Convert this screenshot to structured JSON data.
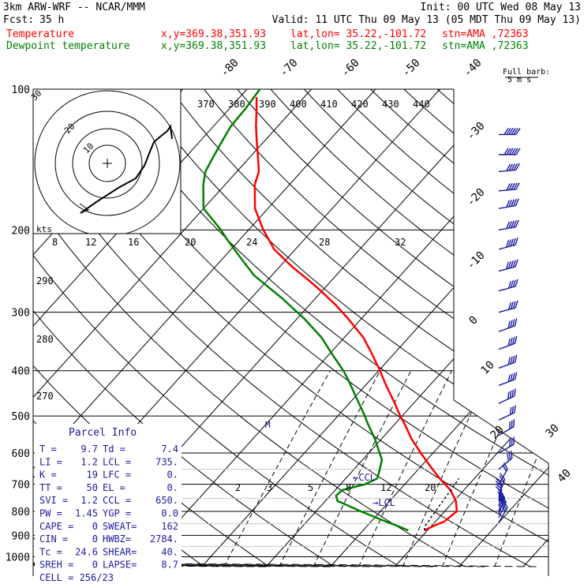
{
  "header": {
    "model": "3km ARW-WRF -- NCAR/MMM",
    "init": "Init: 00 UTC Wed 08 May 13",
    "fcst_label": "Fcst:",
    "fcst_value": "35 h",
    "valid": "Valid: 11 UTC Thu 09 May 13 (05 MDT Thu 09 May 13)"
  },
  "legend": [
    {
      "name": "Temperature",
      "color": "#ff0000",
      "xy": "x,y=369.38,351.93",
      "latlon": "lat,lon= 35.22,-101.72",
      "stn": "stn=AMA ,72363"
    },
    {
      "name": "Dewpoint temperature",
      "color": "#008000",
      "xy": "x,y=369.38,351.93",
      "latlon": "lat,lon= 35.22,-101.72",
      "stn": "stn=AMA ,72363"
    }
  ],
  "parcel_info": {
    "title": "Parcel Info",
    "rows": [
      [
        "T  =",
        "9.7",
        "Td =",
        "7.4"
      ],
      [
        "LI =",
        "1.2",
        "LCL =",
        "735."
      ],
      [
        "K  =",
        "19",
        "LFC =",
        "0."
      ],
      [
        "TT =",
        "50",
        "EL =",
        "0."
      ],
      [
        "SVI =",
        "1.2",
        "CCL =",
        "650."
      ],
      [
        "PW =",
        "1.45",
        "YGP =",
        "0.0"
      ],
      [
        "CAPE =",
        "0",
        "SWEAT=",
        "162"
      ],
      [
        "CIN =",
        "0",
        "HWBZ=",
        "2784."
      ],
      [
        "Tc =",
        "24.6",
        "SHEAR=",
        "40."
      ],
      [
        "SREH =",
        "0",
        "LAPSE=",
        "8.7"
      ],
      [
        "CELL = 256/23",
        "",
        "",
        ""
      ]
    ]
  },
  "hodograph": {
    "units": "kts",
    "ring_labels": [
      "10",
      "20",
      "30"
    ],
    "speed_ticks": [
      "8",
      "12",
      "16",
      "20",
      "24",
      "28",
      "32"
    ]
  },
  "wind_key": {
    "line1": "Full barb:",
    "line2": "5 m s"
  },
  "annotations": {
    "ccl": "←CCL",
    "lcl": "→LCL",
    "m": "M"
  },
  "colors": {
    "temperature": "#ff0000",
    "dewpoint": "#008000",
    "parcel_box": "#1a1aa0",
    "grid": "#000000"
  },
  "chart_data": {
    "type": "line",
    "title": "",
    "y_axis_type": "log pressure",
    "ylabel": "",
    "xlabel": "",
    "ylim": [
      1000,
      100
    ],
    "pressure_ticks": [
      "100",
      "200",
      "300",
      "400",
      "500",
      "600",
      "700",
      "800",
      "900",
      "1000"
    ],
    "isotherm_labels": [
      "-80",
      "-70",
      "-60",
      "-50",
      "-40",
      "-30",
      "-20",
      "-10",
      "0",
      "10",
      "20",
      "30",
      "40"
    ],
    "theta_labels": [
      "370",
      "380",
      "390",
      "400",
      "410",
      "420",
      "430",
      "440"
    ],
    "dry_adiabat_labels": [
      "290",
      "280",
      "270"
    ],
    "mixing_ratio_labels": [
      "2",
      "3",
      "5",
      "8",
      "12",
      "20"
    ],
    "series": [
      {
        "name": "Temperature",
        "color": "#ff0000",
        "p": [
          878,
          860,
          840,
          800,
          760,
          720,
          680,
          640,
          600,
          560,
          520,
          500,
          470,
          430,
          400,
          370,
          340,
          310,
          290,
          270,
          255,
          240,
          220,
          200,
          180,
          160,
          150,
          140,
          130,
          120,
          110,
          104
        ],
        "t": [
          9.5,
          10.3,
          11.4,
          11.9,
          10.3,
          7.9,
          4.6,
          1.4,
          -1.9,
          -5.3,
          -8.5,
          -10.3,
          -12.9,
          -16.8,
          -19.8,
          -23.2,
          -27.0,
          -32.0,
          -35.8,
          -40.2,
          -43.9,
          -48.0,
          -53.3,
          -57.7,
          -62.0,
          -65.4,
          -66.6,
          -68.7,
          -71.0,
          -73.4,
          -75.8,
          -77.4
        ]
      },
      {
        "name": "Dewpoint temperature",
        "color": "#008000",
        "p": [
          878,
          860,
          840,
          800,
          780,
          760,
          740,
          720,
          700,
          680,
          650,
          620,
          600,
          560,
          520,
          500,
          460,
          420,
          400,
          370,
          340,
          310,
          280,
          250,
          230,
          210,
          200,
          180,
          160,
          150,
          140,
          130,
          120,
          110,
          100
        ],
        "t": [
          7.0,
          4.8,
          2.2,
          -3.0,
          -5.5,
          -8.1,
          -9.1,
          -8.9,
          -6.2,
          -5.1,
          -6.0,
          -7.0,
          -8.3,
          -11.0,
          -14.2,
          -15.8,
          -19.4,
          -23.3,
          -25.5,
          -29.4,
          -33.5,
          -38.8,
          -45.2,
          -52.8,
          -57.2,
          -61.9,
          -64.3,
          -70.0,
          -73.4,
          -74.9,
          -75.7,
          -76.5,
          -77.3,
          -77.5,
          -78.0
        ]
      }
    ],
    "parcel_curve": {
      "p": [
        878,
        860,
        840,
        820,
        800,
        780,
        760,
        740,
        720,
        700,
        680
      ],
      "t": [
        9.5,
        9.0,
        8.9,
        8.7,
        8.6,
        8.4,
        8.3,
        8.1,
        8.0,
        7.8,
        7.6
      ]
    },
    "wind_barbs": {
      "p": [
        125,
        138,
        150,
        165,
        180,
        200,
        220,
        245,
        270,
        300,
        330,
        360,
        395,
        430,
        470,
        510,
        550,
        600,
        650,
        700,
        740,
        760,
        780,
        800,
        810,
        825,
        845
      ],
      "speed_kt": [
        55,
        55,
        50,
        50,
        50,
        50,
        45,
        45,
        40,
        40,
        40,
        40,
        35,
        35,
        35,
        30,
        30,
        30,
        25,
        20,
        15,
        15,
        20,
        20,
        25,
        25,
        30
      ],
      "dir_deg": [
        270,
        270,
        265,
        265,
        260,
        260,
        255,
        255,
        255,
        255,
        250,
        250,
        250,
        250,
        245,
        245,
        240,
        240,
        230,
        210,
        200,
        190,
        190,
        195,
        200,
        205,
        210
      ]
    }
  }
}
